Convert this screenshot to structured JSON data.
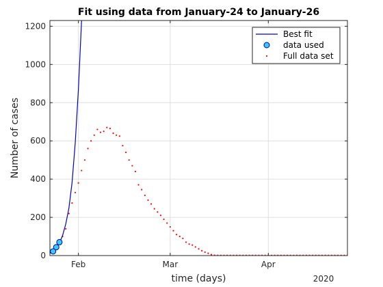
{
  "chart_data": {
    "type": "line",
    "title": "Fit using data from January-24 to January-26",
    "xlabel": "time (days)",
    "ylabel": "Number of cases",
    "year_label": "2020",
    "x_axis": {
      "type": "date",
      "min": "2020-01-23",
      "max": "2020-04-26"
    },
    "ylim": [
      0,
      1230
    ],
    "y_ticks": [
      0,
      200,
      400,
      600,
      800,
      1000,
      1200
    ],
    "x_ticks": [
      {
        "date": "2020-02-01",
        "label": "Feb"
      },
      {
        "date": "2020-03-01",
        "label": "Mar"
      },
      {
        "date": "2020-04-01",
        "label": "Apr"
      }
    ],
    "grid": true,
    "legend": {
      "placement": "top-right",
      "entries": [
        "Best fit",
        "data used",
        "Full data set"
      ]
    },
    "colors": {
      "fit": "#0000cc",
      "used_fill": "#33ccff",
      "used_edge": "#0000aa",
      "full": "#ff0000"
    },
    "series": [
      {
        "name": "Best fit",
        "style": "line",
        "x": [
          "2020-01-23",
          "2020-01-24",
          "2020-01-25",
          "2020-01-26",
          "2020-01-27",
          "2020-01-28",
          "2020-01-29",
          "2020-01-30",
          "2020-01-31",
          "2020-02-01",
          "2020-02-02"
        ],
        "y": [
          12,
          20,
          43,
          65,
          105,
          165,
          248,
          383,
          590,
          870,
          1230
        ]
      },
      {
        "name": "data used",
        "style": "marker",
        "x": [
          "2020-01-24",
          "2020-01-25",
          "2020-01-26"
        ],
        "y": [
          22,
          44,
          70
        ]
      },
      {
        "name": "Full data set",
        "style": "dots",
        "x": [
          "2020-01-23",
          "2020-01-24",
          "2020-01-25",
          "2020-01-26",
          "2020-01-27",
          "2020-01-28",
          "2020-01-29",
          "2020-01-30",
          "2020-01-31",
          "2020-02-01",
          "2020-02-02",
          "2020-02-03",
          "2020-02-04",
          "2020-02-05",
          "2020-02-06",
          "2020-02-07",
          "2020-02-08",
          "2020-02-09",
          "2020-02-10",
          "2020-02-11",
          "2020-02-12",
          "2020-02-13",
          "2020-02-14",
          "2020-02-15",
          "2020-02-16",
          "2020-02-17",
          "2020-02-18",
          "2020-02-19",
          "2020-02-20",
          "2020-02-21",
          "2020-02-22",
          "2020-02-23",
          "2020-02-24",
          "2020-02-25",
          "2020-02-26",
          "2020-02-27",
          "2020-02-28",
          "2020-02-29",
          "2020-03-01",
          "2020-03-02",
          "2020-03-03",
          "2020-03-04",
          "2020-03-05",
          "2020-03-06",
          "2020-03-07",
          "2020-03-08",
          "2020-03-09",
          "2020-03-10",
          "2020-03-11",
          "2020-03-12",
          "2020-03-13",
          "2020-03-14",
          "2020-03-15",
          "2020-03-16",
          "2020-03-17",
          "2020-03-18",
          "2020-03-19",
          "2020-03-20",
          "2020-03-21",
          "2020-03-22",
          "2020-03-23",
          "2020-03-24",
          "2020-03-25",
          "2020-03-26",
          "2020-03-27",
          "2020-03-28",
          "2020-03-29",
          "2020-03-30",
          "2020-03-31",
          "2020-04-01",
          "2020-04-02",
          "2020-04-03",
          "2020-04-04",
          "2020-04-05",
          "2020-04-06",
          "2020-04-07",
          "2020-04-08",
          "2020-04-09",
          "2020-04-10",
          "2020-04-11",
          "2020-04-12",
          "2020-04-13",
          "2020-04-14",
          "2020-04-15",
          "2020-04-16",
          "2020-04-17",
          "2020-04-18",
          "2020-04-19",
          "2020-04-20",
          "2020-04-21",
          "2020-04-22",
          "2020-04-23",
          "2020-04-24",
          "2020-04-25",
          "2020-04-26"
        ],
        "y": [
          15,
          25,
          45,
          65,
          100,
          140,
          220,
          275,
          330,
          380,
          445,
          500,
          560,
          600,
          630,
          660,
          645,
          650,
          670,
          665,
          640,
          630,
          625,
          575,
          540,
          500,
          470,
          440,
          370,
          345,
          315,
          290,
          270,
          245,
          228,
          210,
          190,
          170,
          150,
          130,
          110,
          100,
          90,
          70,
          60,
          55,
          45,
          35,
          25,
          18,
          12,
          5,
          2,
          1,
          1,
          1,
          1,
          1,
          1,
          1,
          1,
          1,
          1,
          1,
          1,
          1,
          1,
          1,
          1,
          1,
          1,
          1,
          1,
          1,
          1,
          1,
          1,
          1,
          1,
          1,
          1,
          1,
          1,
          1,
          1,
          1,
          1,
          1,
          1,
          1,
          1,
          1,
          1,
          1,
          1
        ]
      }
    ]
  }
}
